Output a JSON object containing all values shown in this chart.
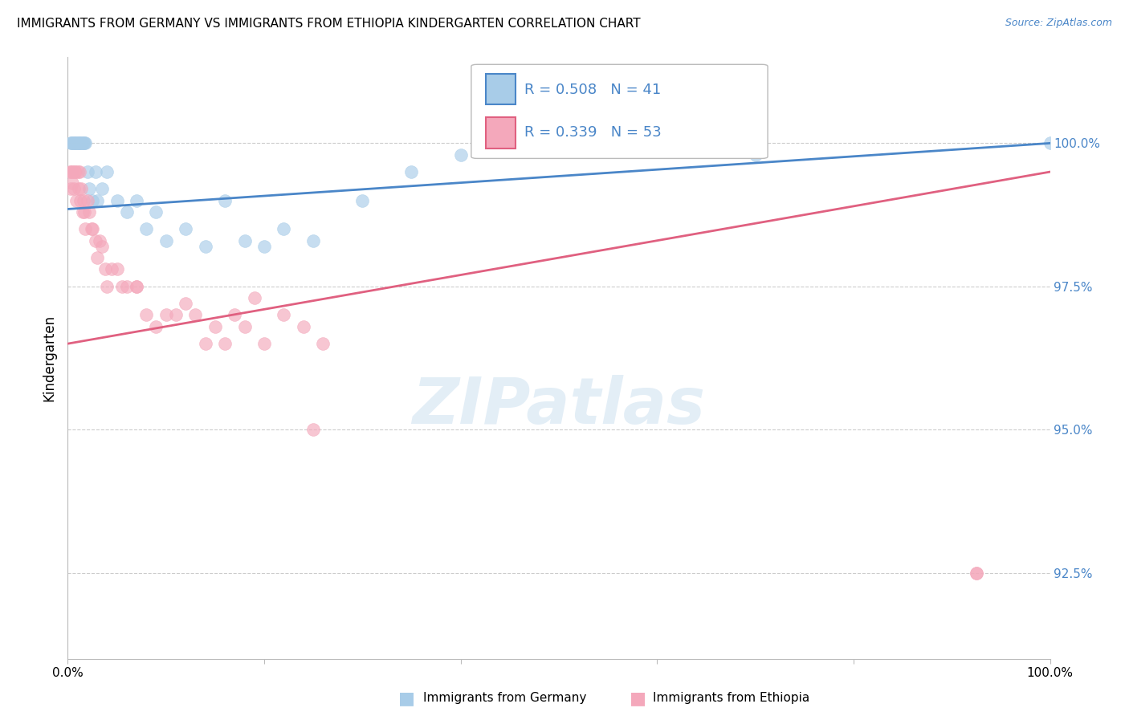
{
  "title": "IMMIGRANTS FROM GERMANY VS IMMIGRANTS FROM ETHIOPIA KINDERGARTEN CORRELATION CHART",
  "source": "Source: ZipAtlas.com",
  "ylabel": "Kindergarten",
  "xlim": [
    0,
    100
  ],
  "ylim": [
    91.0,
    101.5
  ],
  "yticks": [
    92.5,
    95.0,
    97.5,
    100.0
  ],
  "ytick_labels": [
    "92.5%",
    "95.0%",
    "97.5%",
    "100.0%"
  ],
  "germany_color": "#a8cce8",
  "ethiopia_color": "#f4a8bb",
  "germany_line_color": "#4a86c8",
  "ethiopia_line_color": "#e06080",
  "germany_R": 0.508,
  "germany_N": 41,
  "ethiopia_R": 0.339,
  "ethiopia_N": 53,
  "legend_text_color": "#4a86c8",
  "germany_x": [
    0.3,
    0.4,
    0.5,
    0.6,
    0.7,
    0.8,
    0.9,
    1.0,
    1.1,
    1.2,
    1.3,
    1.4,
    1.5,
    1.6,
    1.7,
    1.8,
    2.0,
    2.2,
    2.5,
    2.8,
    3.0,
    3.5,
    4.0,
    5.0,
    6.0,
    7.0,
    8.0,
    9.0,
    10.0,
    12.0,
    14.0,
    16.0,
    18.0,
    20.0,
    22.0,
    25.0,
    30.0,
    35.0,
    40.0,
    70.0,
    100.0
  ],
  "germany_y": [
    100.0,
    100.0,
    100.0,
    100.0,
    100.0,
    100.0,
    100.0,
    100.0,
    100.0,
    100.0,
    100.0,
    100.0,
    100.0,
    100.0,
    100.0,
    100.0,
    99.5,
    99.2,
    99.0,
    99.5,
    99.0,
    99.2,
    99.5,
    99.0,
    98.8,
    99.0,
    98.5,
    98.8,
    98.3,
    98.5,
    98.2,
    99.0,
    98.3,
    98.2,
    98.5,
    98.3,
    99.0,
    99.5,
    99.8,
    99.8,
    100.0
  ],
  "ethiopia_x": [
    0.2,
    0.3,
    0.4,
    0.5,
    0.5,
    0.6,
    0.7,
    0.8,
    0.9,
    1.0,
    1.1,
    1.2,
    1.3,
    1.4,
    1.5,
    1.6,
    1.7,
    1.8,
    2.0,
    2.2,
    2.4,
    2.5,
    2.8,
    3.0,
    3.2,
    3.5,
    3.8,
    4.0,
    4.5,
    5.0,
    5.5,
    6.0,
    7.0,
    8.0,
    9.0,
    10.0,
    11.0,
    12.0,
    13.0,
    14.0,
    15.0,
    16.0,
    17.0,
    18.0,
    19.0,
    20.0,
    22.0,
    24.0,
    25.0,
    26.0,
    7.0,
    92.5,
    92.5
  ],
  "ethiopia_y": [
    99.5,
    99.2,
    99.5,
    99.5,
    99.3,
    99.2,
    99.5,
    99.5,
    99.0,
    99.5,
    99.2,
    99.5,
    99.0,
    99.2,
    98.8,
    99.0,
    98.8,
    98.5,
    99.0,
    98.8,
    98.5,
    98.5,
    98.3,
    98.0,
    98.3,
    98.2,
    97.8,
    97.5,
    97.8,
    97.8,
    97.5,
    97.5,
    97.5,
    97.0,
    96.8,
    97.0,
    97.0,
    97.2,
    97.0,
    96.5,
    96.8,
    96.5,
    97.0,
    96.8,
    97.3,
    96.5,
    97.0,
    96.8,
    95.0,
    96.5,
    97.5,
    92.5,
    92.5
  ]
}
